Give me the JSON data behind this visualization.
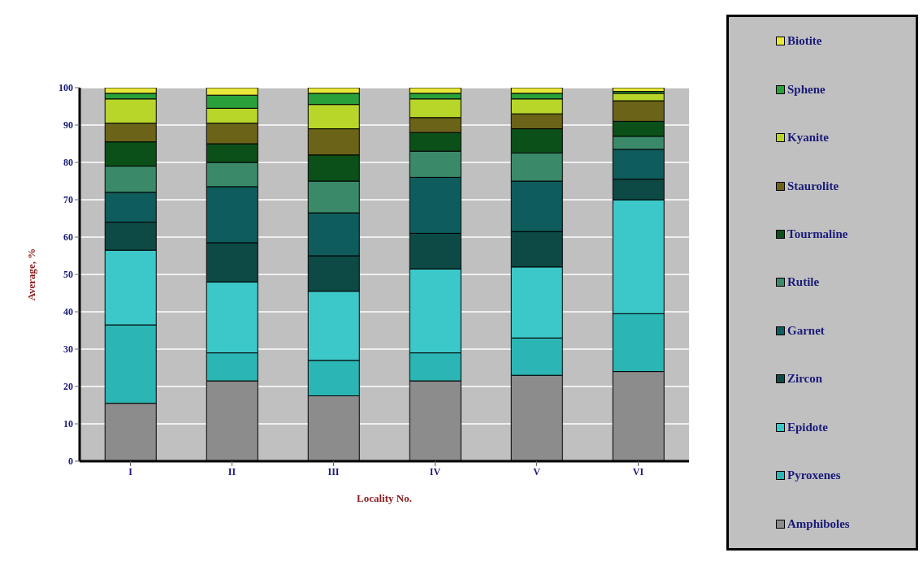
{
  "chart_data": {
    "type": "bar",
    "stacked": true,
    "xlabel": "Locality No.",
    "ylabel": "Average, %",
    "categories": [
      "I",
      "II",
      "III",
      "IV",
      "V",
      "VI"
    ],
    "ylim": [
      0,
      100
    ],
    "yticks": [
      0,
      10,
      20,
      30,
      40,
      50,
      60,
      70,
      80,
      90,
      100
    ],
    "grid": "y",
    "legend": "right",
    "series": [
      {
        "name": "Amphiboles",
        "color": "#8c8c8c",
        "values": [
          15.5,
          21.5,
          17.5,
          21.5,
          23,
          24
        ]
      },
      {
        "name": "Pyroxenes",
        "color": "#2cb5b5",
        "values": [
          21,
          7.5,
          9.5,
          7.5,
          10,
          15.5
        ]
      },
      {
        "name": "Epidote",
        "color": "#3cc8c8",
        "values": [
          20,
          19,
          18.5,
          22.5,
          19,
          30.5
        ]
      },
      {
        "name": "Zircon",
        "color": "#0d4a45",
        "values": [
          7.5,
          10.5,
          9.5,
          9.5,
          9.5,
          5.5
        ]
      },
      {
        "name": "Garnet",
        "color": "#0f5c5c",
        "values": [
          8,
          15,
          11.5,
          15,
          13.5,
          8
        ]
      },
      {
        "name": "Rutile",
        "color": "#3a8a6a",
        "values": [
          7,
          6.5,
          8.5,
          7,
          7.5,
          3.5
        ]
      },
      {
        "name": "Tourmaline",
        "color": "#0b5018",
        "values": [
          6.5,
          5,
          7,
          5,
          6.5,
          4
        ]
      },
      {
        "name": "Staurolite",
        "color": "#6b6418",
        "values": [
          5,
          5.5,
          7,
          4,
          4,
          5.5
        ]
      },
      {
        "name": "Kyanite",
        "color": "#b8d62a",
        "values": [
          6.5,
          4,
          6.5,
          5,
          4,
          2
        ]
      },
      {
        "name": "Sphene",
        "color": "#2aa03a",
        "values": [
          1.5,
          3.5,
          3,
          1.5,
          1.5,
          0.5
        ]
      },
      {
        "name": "Biotite",
        "color": "#e8e83a",
        "values": [
          1.5,
          2,
          1.5,
          1.5,
          1.5,
          1
        ]
      }
    ]
  }
}
